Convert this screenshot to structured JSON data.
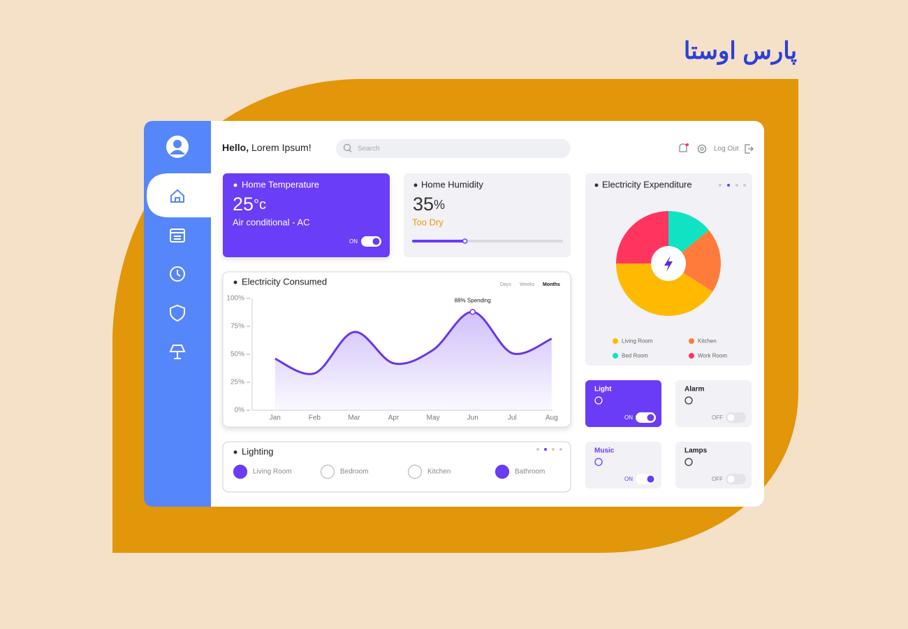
{
  "logo": "پارس اوستا",
  "header": {
    "greeting": "Hello,",
    "name": "Lorem Ipsum!",
    "search": "Search",
    "logout": "Log Out"
  },
  "temperature": {
    "title": "Home Temperature",
    "value": 25,
    "unit": "°c",
    "subtitle": "Air conditional - AC",
    "state": "ON"
  },
  "humidity": {
    "title": "Home Humidity",
    "value": 35,
    "unit": "%",
    "status": "Too Dry"
  },
  "chart_data": [
    {
      "type": "line",
      "title": "Electricity Consumed",
      "tabs": [
        "Days",
        "Weeks",
        "Months"
      ],
      "categories": [
        "Jan",
        "Feb",
        "Mar",
        "Apr",
        "May",
        "Jun",
        "Jul",
        "Aug"
      ],
      "values": [
        46,
        33,
        70,
        42,
        54,
        88,
        51,
        64
      ],
      "color": "#6a36e8",
      "ylim": [
        0,
        100
      ],
      "yticks": [
        {
          "value": 0,
          "label": "0%"
        },
        {
          "value": 25,
          "label": "25%"
        },
        {
          "value": 50,
          "label": "50%"
        },
        {
          "value": 75,
          "label": "75%"
        },
        {
          "value": 100,
          "label": "100%"
        }
      ],
      "annotation": "88% Spending"
    },
    {
      "type": "pie",
      "title": "Electricity Expenditure",
      "categories": [
        "Bed Room",
        "Kitchen",
        "Living Room",
        "Work Room"
      ],
      "values": [
        14,
        20,
        41,
        25
      ],
      "colors": [
        "#10e3c4",
        "#ff7b3b",
        "#ffb900",
        "#ff3560"
      ]
    }
  ],
  "lighting": {
    "title": "Lighting",
    "rooms": [
      {
        "name": "Living Room",
        "on": true
      },
      {
        "name": "Bedroom",
        "on": false
      },
      {
        "name": "Kitchen",
        "on": false
      },
      {
        "name": "Bathroom",
        "on": true
      }
    ]
  },
  "devices": [
    {
      "name": "Light",
      "state": "ON",
      "on": true
    },
    {
      "name": "Alarm",
      "state": "OFF",
      "on": false
    },
    {
      "name": "Music",
      "state": "ON",
      "on": true
    },
    {
      "name": "Lamps",
      "state": "OFF",
      "on": false
    }
  ]
}
